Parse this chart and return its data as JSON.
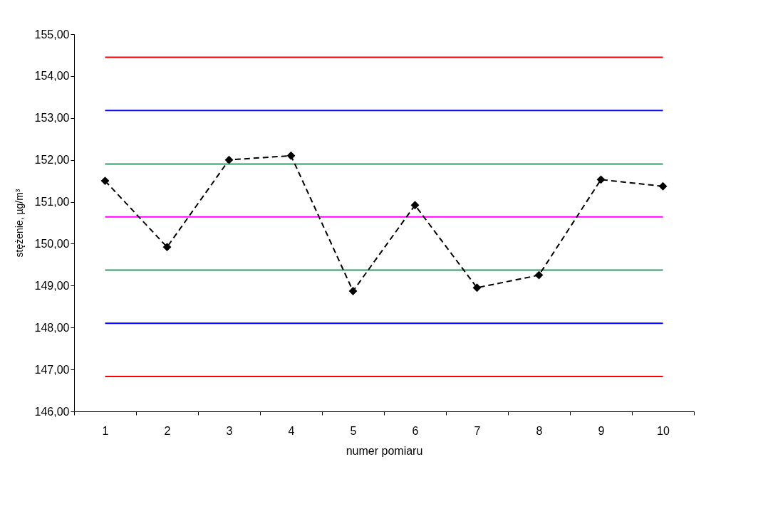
{
  "chart_data": {
    "type": "line",
    "xlabel": "numer  pomiaru",
    "ylabel": "stężenie, µg/m³",
    "categories": [
      "1",
      "2",
      "3",
      "4",
      "5",
      "6",
      "7",
      "8",
      "9",
      "10"
    ],
    "series": [
      {
        "color": "#000000",
        "values": [
          151.5,
          149.92,
          152.0,
          152.1,
          148.87,
          150.92,
          148.95,
          149.25,
          151.53,
          151.37
        ]
      }
    ],
    "ylim": [
      146,
      155
    ],
    "yticks": [
      {
        "value": 146,
        "label": "146,00"
      },
      {
        "value": 147,
        "label": "147,00"
      },
      {
        "value": 148,
        "label": "148,00"
      },
      {
        "value": 149,
        "label": "149,00"
      },
      {
        "value": 150,
        "label": "150,00"
      },
      {
        "value": 151,
        "label": "151,00"
      },
      {
        "value": 152,
        "label": "152,00"
      },
      {
        "value": 153,
        "label": "153,00"
      },
      {
        "value": 154,
        "label": "154,00"
      },
      {
        "value": 155,
        "label": "155,00"
      }
    ],
    "ref_lines": [
      {
        "axis": "y",
        "value": 154.45,
        "color": "#ff0000"
      },
      {
        "axis": "y",
        "value": 153.18,
        "color": "#0000ff"
      },
      {
        "axis": "y",
        "value": 151.9,
        "color": "#339966"
      },
      {
        "axis": "y",
        "value": 150.64,
        "color": "#ff00ff"
      },
      {
        "axis": "y",
        "value": 149.37,
        "color": "#339966"
      },
      {
        "axis": "y",
        "value": 148.1,
        "color": "#0000ff"
      },
      {
        "axis": "y",
        "value": 146.83,
        "color": "#ff0000"
      }
    ],
    "grid": false,
    "marker": "diamond",
    "line_style": "dashed"
  }
}
